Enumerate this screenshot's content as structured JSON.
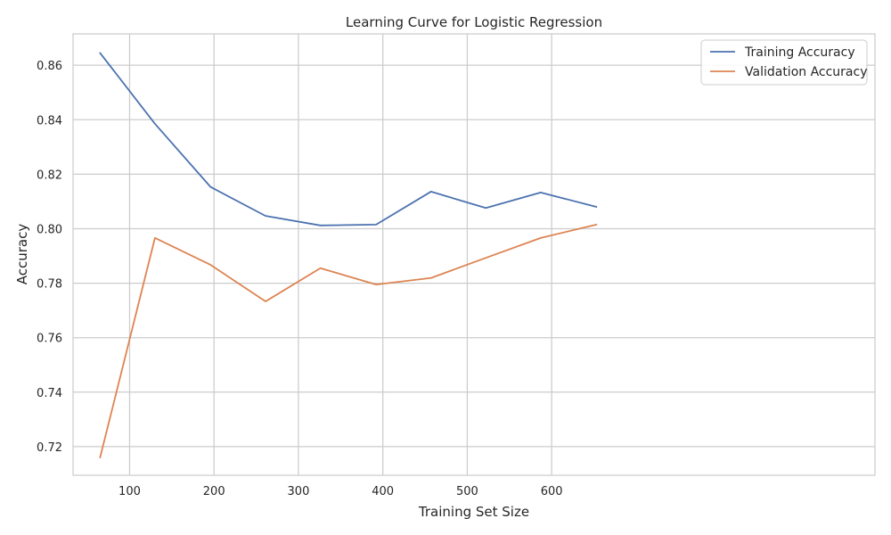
{
  "chart_data": {
    "type": "line",
    "title": "Learning Curve for Logistic Regression",
    "xlabel": "Training Set Size",
    "ylabel": "Accuracy",
    "xlim": [
      33,
      983
    ],
    "ylim": [
      0.7095,
      0.8715
    ],
    "xticks": [
      100,
      200,
      300,
      400,
      500,
      600
    ],
    "yticks": [
      0.72,
      0.74,
      0.76,
      0.78,
      0.8,
      0.82,
      0.84,
      0.86
    ],
    "ytick_labels": [
      "0.72",
      "0.74",
      "0.76",
      "0.78",
      "0.80",
      "0.82",
      "0.84",
      "0.86"
    ],
    "grid": true,
    "legend_position": "top-right",
    "x": [
      65,
      130,
      196,
      261,
      326,
      392,
      457,
      522,
      587,
      653
    ],
    "series": [
      {
        "name": "Training Accuracy",
        "color": "#4c72b0",
        "values": [
          0.8645,
          0.8385,
          0.8153,
          0.8047,
          0.8012,
          0.8015,
          0.8136,
          0.8076,
          0.8133,
          0.808
        ]
      },
      {
        "name": "Validation Accuracy",
        "color": "#dd8452",
        "values": [
          0.716,
          0.7966,
          0.7867,
          0.7733,
          0.7855,
          0.7795,
          0.7819,
          0.7893,
          0.7966,
          0.8015
        ]
      }
    ],
    "colors": {
      "grid": "#cccccc",
      "spine": "#cccccc",
      "text": "#262626",
      "background": "#ffffff"
    }
  }
}
